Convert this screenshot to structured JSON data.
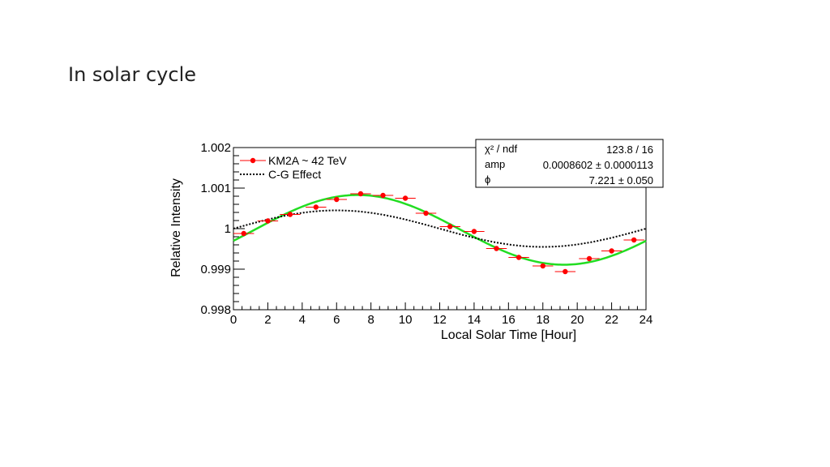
{
  "slide": {
    "title": "In solar cycle"
  },
  "chart_data": {
    "type": "scatter",
    "xlabel": "Local Solar Time [Hour]",
    "ylabel": "Relative Intensity",
    "xlim": [
      0,
      24
    ],
    "ylim": [
      0.998,
      1.002
    ],
    "x_ticks": [
      0,
      2,
      4,
      6,
      8,
      10,
      12,
      14,
      16,
      18,
      20,
      22,
      24
    ],
    "y_ticks": [
      {
        "value": 0.998,
        "label": "0.998"
      },
      {
        "value": 0.999,
        "label": "0.999"
      },
      {
        "value": 1.0,
        "label": "1"
      },
      {
        "value": 1.001,
        "label": "1.001"
      },
      {
        "value": 1.002,
        "label": "1.002"
      }
    ],
    "grid": false,
    "legend": {
      "placement": "top-left",
      "entries": [
        {
          "label": "KM2A ~ 42 TeV",
          "style": "red-marker-errorbar"
        },
        {
          "label": "C-G Effect",
          "style": "black-dotted-line"
        }
      ]
    },
    "fit_box": {
      "placement": "top-right",
      "rows": [
        {
          "name": "χ² / ndf",
          "value": "123.8 / 16"
        },
        {
          "name": "amp",
          "value": "0.0008602 ± 0.0000113"
        },
        {
          "name": "ϕ",
          "value": "7.221 ± 0.050"
        }
      ]
    },
    "series": [
      {
        "name": "KM2A ~ 42 TeV",
        "kind": "points",
        "color": "#ff0000",
        "x_halfwidth": 0.6,
        "x": [
          0.6,
          2.0,
          3.3,
          4.8,
          6.0,
          7.4,
          8.7,
          10.0,
          11.2,
          12.6,
          14.0,
          15.3,
          16.6,
          18.0,
          19.3,
          20.7,
          22.0,
          23.3
        ],
        "y": [
          0.99988,
          1.00019,
          1.00035,
          1.00053,
          1.00072,
          1.00086,
          1.00082,
          1.00075,
          1.00038,
          1.00005,
          0.99993,
          0.99951,
          0.99929,
          0.99908,
          0.99894,
          0.99926,
          0.99945,
          0.99972
        ]
      },
      {
        "name": "fit",
        "kind": "sine",
        "color": "#22dd22",
        "amp": 0.00086,
        "phase": 7.221,
        "period": 24,
        "baseline": 0.99997
      },
      {
        "name": "C-G Effect",
        "kind": "sine",
        "color": "#000000",
        "dashed": true,
        "amp": 0.00045,
        "phase": 6.0,
        "period": 24,
        "baseline": 1.0
      }
    ]
  }
}
